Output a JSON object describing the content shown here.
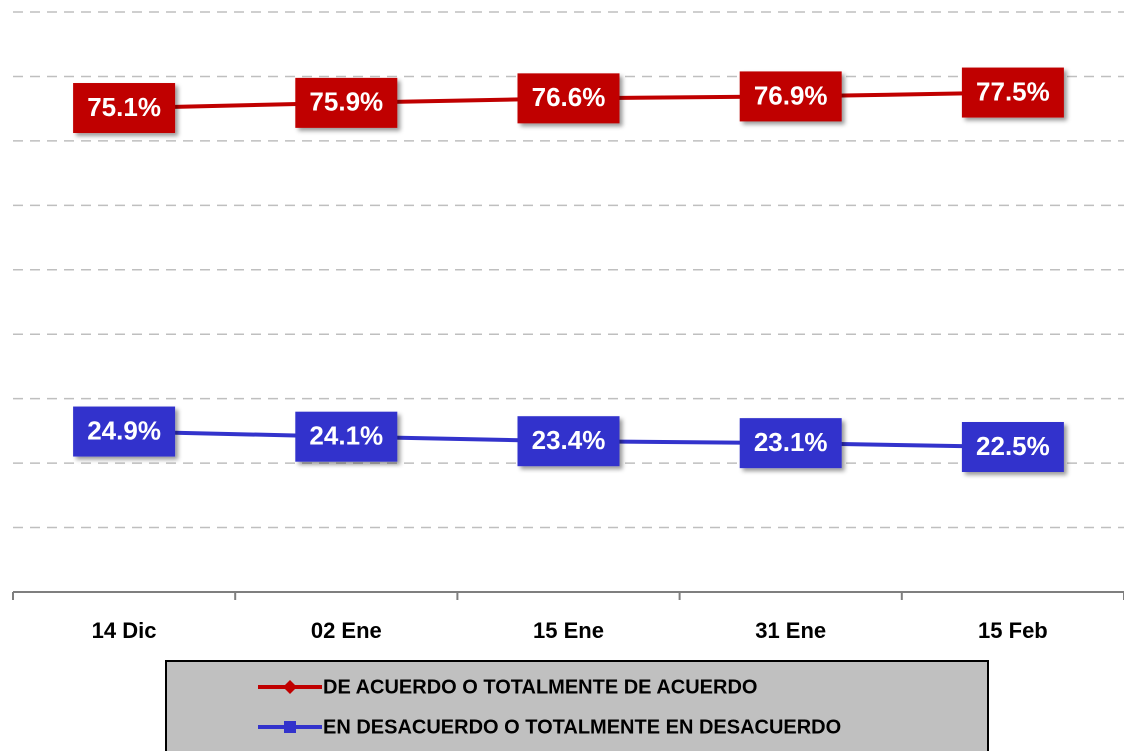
{
  "chart_data": {
    "type": "line",
    "categories": [
      "14 Dic",
      "02 Ene",
      "15 Ene",
      "31 Ene",
      "15 Feb"
    ],
    "series": [
      {
        "name": "DE ACUERDO O TOTALMENTE DE ACUERDO",
        "color": "#c00000",
        "marker": "diamond",
        "values": [
          75.1,
          75.9,
          76.6,
          76.9,
          77.5
        ],
        "value_labels": [
          "75.1%",
          "75.9%",
          "76.6%",
          "76.9%",
          "77.5%"
        ]
      },
      {
        "name": "EN DESACUERDO O TOTALMENTE EN DESACUERDO",
        "color": "#3333cc",
        "marker": "square",
        "values": [
          24.9,
          24.1,
          23.4,
          23.1,
          22.5
        ],
        "value_labels": [
          "24.9%",
          "24.1%",
          "23.4%",
          "23.1%",
          "22.5%"
        ]
      }
    ],
    "ylim": [
      0,
      90
    ],
    "yticks": [
      10,
      20,
      30,
      40,
      50,
      60,
      70,
      80,
      90
    ],
    "grid": true
  }
}
